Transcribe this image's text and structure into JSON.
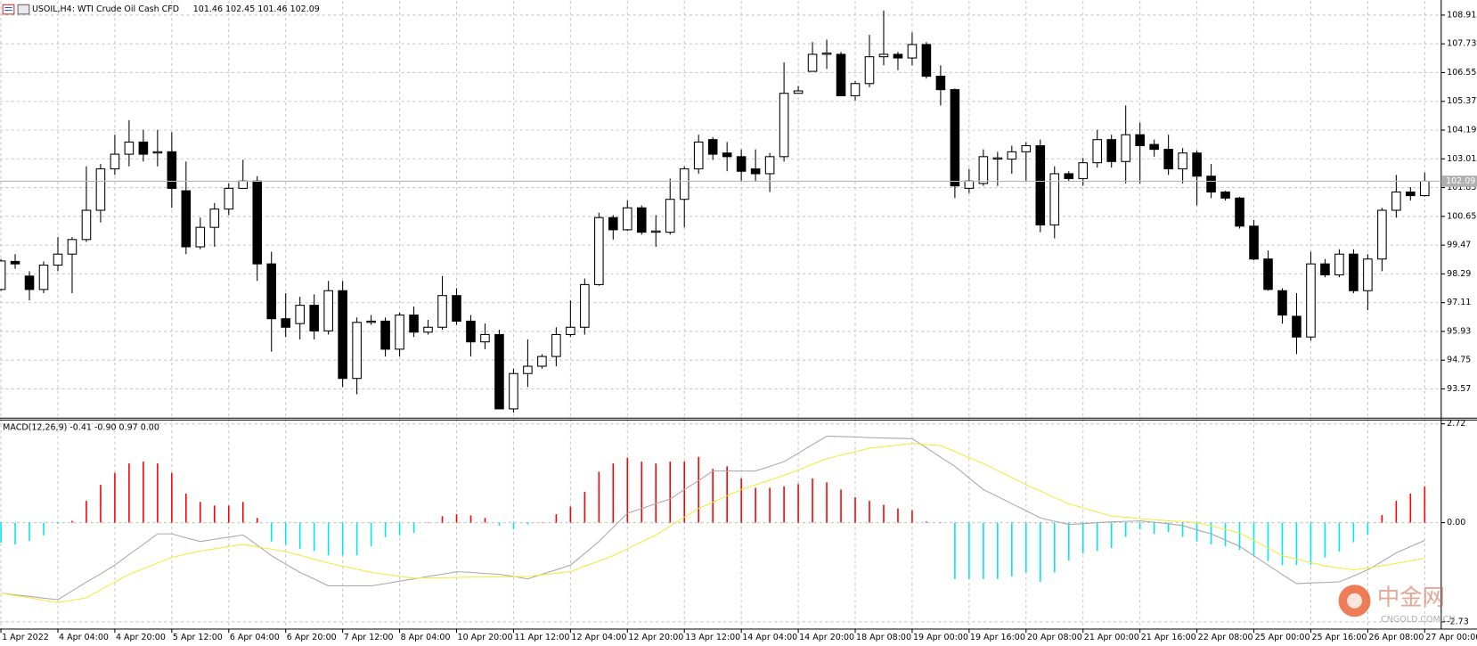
{
  "chart_data": [
    {
      "type": "candlestick",
      "title": "USOIL,H4:  WTI Crude Oil Cash CFD",
      "ohlc_text": "101.46 102.45 101.46 102.09",
      "categories": [
        "1 Apr 2022",
        null,
        null,
        null,
        "4 Apr 04:00",
        null,
        null,
        null,
        "4 Apr 20:00",
        null,
        null,
        null,
        "5 Apr 12:00",
        null,
        null,
        null,
        "6 Apr 04:00",
        null,
        null,
        null,
        "6 Apr 20:00",
        null,
        null,
        null,
        "7 Apr 12:00",
        null,
        null,
        null,
        "8 Apr 04:00",
        null,
        null,
        null,
        "10 Apr 20:00",
        null,
        null,
        null,
        "11 Apr 12:00",
        null,
        null,
        null,
        "12 Apr 04:00",
        null,
        null,
        null,
        "12 Apr 20:00",
        null,
        null,
        null,
        "13 Apr 12:00",
        null,
        null,
        null,
        "14 Apr 04:00",
        null,
        null,
        null,
        "14 Apr 20:00",
        null,
        null,
        null,
        "18 Apr 08:00",
        null,
        null,
        null,
        "19 Apr 00:00",
        null,
        null,
        null,
        "19 Apr 16:00",
        null,
        null,
        null,
        "20 Apr 08:00",
        null,
        null,
        null,
        "21 Apr 00:00",
        null,
        null,
        null,
        "21 Apr 16:00",
        null,
        null,
        null,
        "22 Apr 08:00",
        null,
        null,
        null,
        "25 Apr 00:00",
        null,
        null,
        null,
        "25 Apr 16:00",
        null,
        null,
        null,
        "26 Apr 08:00",
        null,
        null,
        null,
        "27 Apr 00:00"
      ],
      "open": [
        97.65,
        98.8,
        98.2,
        97.65,
        98.65,
        99.1,
        99.7,
        100.9,
        102.6,
        103.2,
        103.7,
        103.25,
        103.3,
        101.7,
        99.4,
        100.2,
        100.95,
        101.8,
        102.1,
        98.7,
        96.45,
        96.25,
        97.0,
        95.95,
        97.6,
        94.0,
        96.3,
        96.35,
        95.2,
        96.6,
        95.9,
        96.1,
        97.4,
        96.35,
        95.5,
        95.8,
        92.75,
        94.2,
        94.5,
        94.9,
        95.8,
        96.1,
        97.85,
        100.6,
        100.1,
        101.0,
        100.0,
        100.0,
        101.35,
        102.6,
        103.8,
        103.25,
        103.1,
        102.6,
        102.4,
        103.1,
        105.7,
        106.6,
        107.3,
        107.3,
        105.6,
        106.1,
        107.2,
        107.3,
        107.15,
        107.7,
        106.4,
        105.85,
        101.8,
        102.0,
        103.0,
        103.0,
        103.3,
        103.55,
        100.3,
        102.4,
        102.2,
        102.85,
        103.8,
        102.9,
        104.0,
        103.6,
        103.4,
        102.6,
        103.25,
        102.3,
        101.65,
        101.4,
        100.25,
        98.9,
        97.6,
        96.55,
        95.7,
        98.7,
        98.25,
        99.1,
        97.6,
        98.9,
        100.9,
        101.65,
        101.5
      ],
      "high": [
        98.9,
        99.1,
        98.4,
        98.8,
        99.8,
        99.8,
        102.7,
        102.8,
        104.0,
        104.6,
        104.2,
        104.2,
        104.1,
        102.9,
        100.6,
        101.2,
        102.0,
        102.97,
        102.3,
        99.2,
        97.5,
        97.35,
        97.45,
        98.0,
        98.0,
        96.5,
        96.6,
        96.5,
        96.7,
        96.95,
        96.4,
        98.2,
        97.7,
        96.6,
        96.25,
        96.0,
        94.4,
        95.6,
        95.0,
        96.1,
        97.2,
        98.1,
        100.8,
        100.7,
        101.3,
        101.1,
        100.7,
        102.2,
        102.7,
        104.0,
        103.9,
        103.7,
        103.4,
        103.4,
        103.25,
        106.97,
        106.0,
        107.8,
        107.9,
        107.4,
        106.2,
        108.1,
        109.1,
        107.4,
        108.2,
        107.8,
        106.85,
        105.9,
        102.6,
        103.4,
        103.3,
        103.55,
        103.7,
        103.8,
        102.7,
        102.5,
        103.05,
        104.2,
        104.0,
        105.2,
        104.5,
        103.8,
        104.0,
        103.45,
        103.35,
        102.8,
        101.7,
        101.45,
        100.5,
        99.25,
        97.7,
        97.5,
        99.2,
        98.9,
        99.3,
        99.3,
        99.1,
        101.0,
        102.35,
        101.85,
        102.45
      ],
      "low": [
        97.6,
        98.5,
        97.2,
        97.5,
        98.4,
        97.5,
        99.6,
        100.4,
        102.35,
        102.7,
        102.9,
        102.7,
        101.0,
        99.1,
        99.3,
        99.4,
        100.7,
        101.8,
        98.0,
        95.1,
        95.7,
        95.6,
        95.6,
        95.8,
        93.65,
        93.35,
        96.2,
        94.9,
        94.9,
        95.7,
        95.8,
        96.0,
        96.2,
        94.9,
        95.2,
        92.75,
        92.6,
        93.65,
        94.4,
        94.5,
        95.7,
        95.8,
        97.8,
        99.7,
        100.05,
        99.9,
        99.4,
        99.9,
        100.2,
        102.4,
        102.97,
        102.5,
        102.1,
        102.1,
        101.65,
        102.9,
        105.7,
        106.6,
        106.7,
        105.6,
        105.4,
        105.95,
        106.85,
        106.65,
        106.85,
        106.3,
        105.2,
        101.4,
        101.6,
        101.9,
        101.9,
        102.4,
        102.1,
        100.0,
        99.75,
        102.1,
        101.9,
        102.65,
        102.65,
        102.0,
        102.0,
        103.1,
        102.35,
        102.0,
        101.1,
        101.4,
        101.3,
        100.15,
        98.85,
        97.6,
        96.25,
        95.0,
        95.55,
        98.15,
        98.15,
        97.5,
        96.8,
        98.4,
        100.6,
        101.3,
        101.46
      ],
      "close": [
        98.82,
        98.7,
        97.65,
        98.65,
        99.1,
        99.7,
        100.9,
        102.6,
        103.2,
        103.7,
        103.2,
        103.3,
        101.8,
        99.4,
        100.2,
        100.95,
        101.8,
        102.1,
        98.7,
        96.45,
        96.1,
        97.0,
        95.95,
        97.6,
        94.0,
        96.3,
        96.35,
        95.2,
        96.6,
        95.9,
        96.1,
        97.4,
        96.35,
        95.5,
        95.8,
        92.75,
        94.2,
        94.5,
        94.9,
        95.8,
        96.1,
        97.85,
        100.6,
        100.1,
        101.0,
        100.0,
        100.05,
        101.35,
        102.6,
        103.7,
        103.2,
        103.1,
        102.5,
        102.4,
        103.1,
        105.7,
        105.8,
        107.3,
        107.35,
        105.6,
        106.1,
        107.2,
        107.3,
        107.15,
        107.7,
        106.4,
        105.85,
        101.9,
        102.1,
        103.1,
        103.05,
        103.3,
        103.55,
        100.3,
        102.4,
        102.2,
        102.85,
        103.8,
        102.9,
        104.0,
        103.55,
        103.4,
        102.6,
        103.25,
        102.3,
        101.65,
        101.4,
        100.25,
        98.9,
        97.65,
        96.6,
        95.7,
        98.7,
        98.25,
        99.1,
        97.6,
        98.9,
        100.9,
        101.65,
        101.5,
        102.09
      ],
      "up_color": "#ffffff",
      "down_color": "#000000",
      "last_price": 102.09,
      "ylim": [
        92.41,
        109.49
      ],
      "yticks": [
        108.91,
        107.73,
        106.55,
        105.37,
        104.19,
        103.01,
        101.83,
        100.65,
        99.47,
        98.29,
        97.11,
        95.93,
        94.75,
        93.57
      ],
      "grid": true
    },
    {
      "type": "macd",
      "title": "MACD(12,26,9) -0.41 -0.90 0.97 0.00",
      "histogram": {
        "up_color": "#ff0000",
        "down_color": "#00e5ee",
        "values": [
          -0.55,
          -0.6,
          -0.5,
          -0.35,
          -0.03,
          0.05,
          0.6,
          1.04,
          1.37,
          1.63,
          1.68,
          1.63,
          1.37,
          0.8,
          0.57,
          0.47,
          0.47,
          0.57,
          0.13,
          -0.52,
          -0.6,
          -0.72,
          -0.78,
          -0.9,
          -0.9,
          -0.9,
          -0.65,
          -0.4,
          -0.35,
          -0.28,
          0,
          0.18,
          0.23,
          0.2,
          0.13,
          -0.08,
          -0.18,
          -0.05,
          0,
          0.23,
          0.44,
          0.85,
          1.4,
          1.63,
          1.79,
          1.68,
          1.63,
          1.68,
          1.68,
          1.81,
          1.48,
          1.55,
          1.22,
          0.96,
          0.96,
          1.0,
          1.06,
          1.22,
          1.11,
          0.91,
          0.7,
          0.6,
          0.49,
          0.39,
          0.34,
          0.03,
          0,
          -1.55,
          -1.55,
          -1.55,
          -1.55,
          -1.48,
          -1.37,
          -1.63,
          -1.37,
          -1.04,
          -0.85,
          -0.78,
          -0.7,
          -0.39,
          -0.18,
          -0.31,
          -0.26,
          -0.39,
          -0.52,
          -0.6,
          -0.65,
          -0.75,
          -0.9,
          -1.06,
          -1.17,
          -1.17,
          -1.17,
          -0.96,
          -0.8,
          -0.54,
          -0.34,
          0.21,
          0.6,
          0.8,
          1.0
        ]
      },
      "series": [
        {
          "color": "#a8a8a8",
          "values": [
            -1.94,
            -1.99,
            -2.03,
            -2.08,
            -2.12,
            -1.88,
            -1.64,
            -1.41,
            -1.17,
            -0.88,
            -0.6,
            -0.31,
            -0.31,
            -0.42,
            -0.52,
            -0.46,
            -0.4,
            -0.34,
            -0.62,
            -0.91,
            -1.14,
            -1.37,
            -1.55,
            -1.74,
            -1.74,
            -1.74,
            -1.74,
            -1.68,
            -1.61,
            -1.55,
            -1.48,
            -1.42,
            -1.35,
            -1.37,
            -1.4,
            -1.42,
            -1.48,
            -1.55,
            -1.42,
            -1.3,
            -1.17,
            -0.85,
            -0.52,
            -0.13,
            0.26,
            0.39,
            0.52,
            0.65,
            0.91,
            1.16,
            1.42,
            1.42,
            1.42,
            1.42,
            1.55,
            1.68,
            1.91,
            2.15,
            2.38,
            2.37,
            2.36,
            2.34,
            2.33,
            2.32,
            2.31,
            2.06,
            1.8,
            1.55,
            1.23,
            0.91,
            0.72,
            0.52,
            0.33,
            0.13,
            0.04,
            -0.05,
            -0.03,
            0,
            0.02,
            0.03,
            0.05,
            0.01,
            -0.03,
            -0.08,
            -0.2,
            -0.31,
            -0.48,
            -0.65,
            -0.91,
            -1.17,
            -1.43,
            -1.68,
            -1.66,
            -1.65,
            -1.63,
            -1.47,
            -1.3,
            -1.07,
            -0.83,
            -0.66,
            -0.49
          ]
        },
        {
          "color": "#f5e93c",
          "values": [
            -1.94,
            -2.01,
            -2.07,
            -2.14,
            -2.2,
            -2.14,
            -2.07,
            -1.85,
            -1.64,
            -1.42,
            -1.27,
            -1.11,
            -0.96,
            -0.87,
            -0.78,
            -0.72,
            -0.66,
            -0.6,
            -0.67,
            -0.73,
            -0.8,
            -0.9,
            -1.01,
            -1.11,
            -1.2,
            -1.28,
            -1.37,
            -1.42,
            -1.48,
            -1.53,
            -1.52,
            -1.52,
            -1.51,
            -1.5,
            -1.5,
            -1.49,
            -1.49,
            -1.48,
            -1.44,
            -1.39,
            -1.35,
            -1.2,
            -1.06,
            -0.91,
            -0.72,
            -0.53,
            -0.34,
            -0.1,
            0.15,
            0.39,
            0.56,
            0.74,
            0.91,
            1.04,
            1.17,
            1.3,
            1.45,
            1.61,
            1.76,
            1.86,
            1.95,
            2.05,
            2.09,
            2.14,
            2.18,
            2.15,
            2.12,
            1.96,
            1.79,
            1.63,
            1.43,
            1.24,
            1.04,
            0.87,
            0.69,
            0.52,
            0.41,
            0.29,
            0.18,
            0.15,
            0.11,
            0.08,
            0.05,
            0.03,
            0,
            -0.09,
            -0.19,
            -0.28,
            -0.49,
            -0.7,
            -0.91,
            -1.0,
            -1.1,
            -1.19,
            -1.25,
            -1.3,
            -1.25,
            -1.19,
            -1.12,
            -1.05,
            -0.98
          ]
        }
      ],
      "ylim": [
        -2.93,
        2.8
      ],
      "yticks": [
        2.72,
        {
          "value": 0,
          "label": "0.00"
        },
        -2.73
      ]
    }
  ],
  "watermark": {
    "name": "中金网",
    "site": "CNGOLD.COM.CN"
  }
}
